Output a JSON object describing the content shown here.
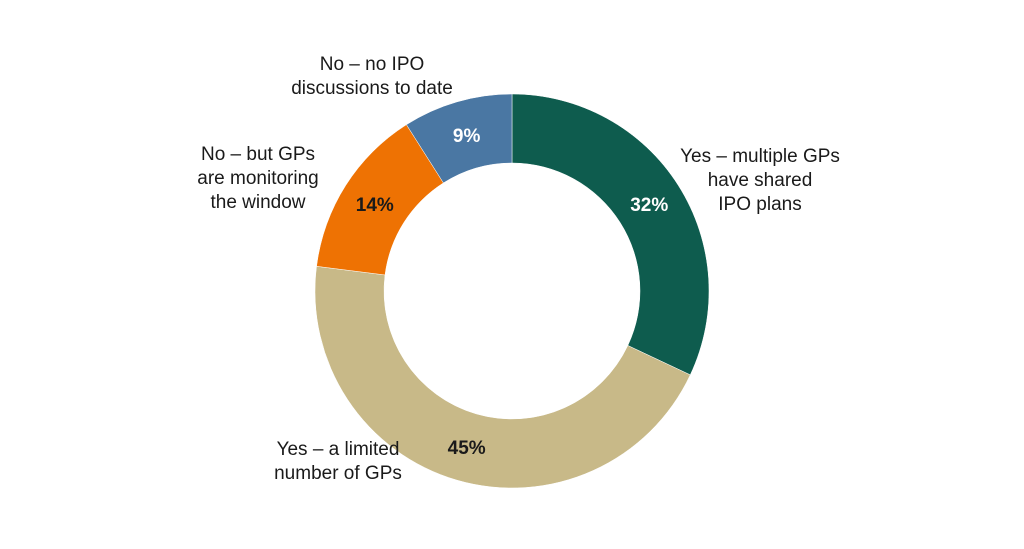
{
  "chart_data": {
    "type": "pie",
    "variant": "donut",
    "title": "",
    "start_angle_deg": 0,
    "direction": "clockwise",
    "slices": [
      {
        "label": [
          "Yes – multiple GPs",
          "have shared",
          "IPO plans"
        ],
        "value": 32,
        "value_label": "32%",
        "color": "#0e5c4e",
        "label_color": "#ffffff"
      },
      {
        "label": [
          "Yes – a limited",
          "number of GPs"
        ],
        "value": 45,
        "value_label": "45%",
        "color": "#c8b988",
        "label_color": "#1a1a1a"
      },
      {
        "label": [
          "No – but GPs",
          "are monitoring",
          "the window"
        ],
        "value": 14,
        "value_label": "14%",
        "color": "#ee7203",
        "label_color": "#1a1a1a"
      },
      {
        "label": [
          "No – no IPO",
          "discussions to date"
        ],
        "value": 9,
        "value_label": "9%",
        "color": "#4a77a3",
        "label_color": "#ffffff"
      }
    ]
  }
}
